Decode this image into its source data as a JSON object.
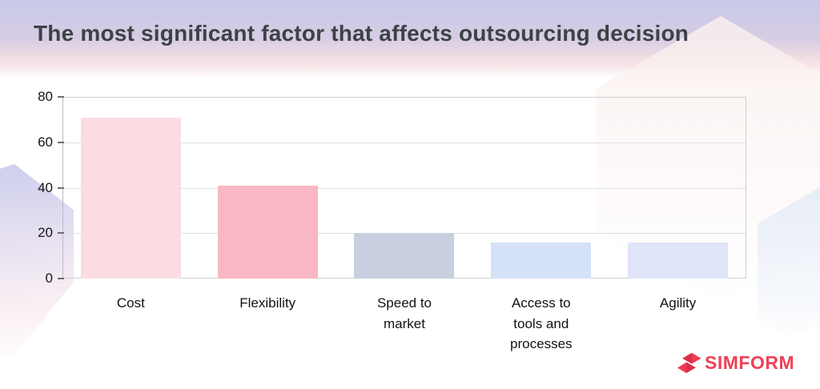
{
  "page": {
    "title": "The most significant factor that affects outsourcing decision"
  },
  "branding": {
    "logo_text": "SIMFORM",
    "logo_color": "#ef4155",
    "logo_icon": "simform-s-icon"
  },
  "colors": {
    "title_text": "#3e4147",
    "header_gradient_top": "#c7c8e6",
    "header_gradient_bottom": "#f6e4e7",
    "grid_line": "#dedee0",
    "axis_line": "#bdbdbf",
    "tick_text": "#161616",
    "label_text": "#121212"
  },
  "chart_data": {
    "type": "bar",
    "title": "The most significant factor that affects outsourcing decision",
    "categories": [
      "Cost",
      "Flexibility",
      "Speed to\nmarket",
      "Access to\ntools and\nprocesses",
      "Agility"
    ],
    "values": [
      71,
      41,
      20,
      16,
      16
    ],
    "bar_colors": [
      "#fbdce3",
      "#f8b7c2",
      "#c8d0e0",
      "#d5e1f6",
      "#dfe4f8"
    ],
    "xlabel": "",
    "ylabel": "",
    "ylim": [
      0,
      80
    ],
    "yticks": [
      0,
      20,
      40,
      60,
      80
    ],
    "grid": true,
    "legend": false
  }
}
